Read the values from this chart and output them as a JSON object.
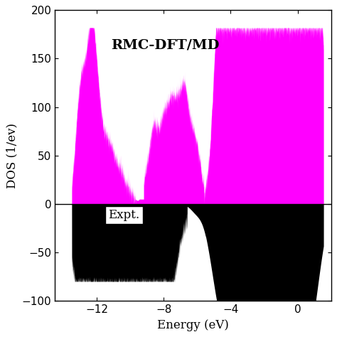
{
  "title": "RMC-DFT/MD",
  "xlabel": "Energy (eV)",
  "ylabel": "DOS (1/ev)",
  "xlim": [
    -14.5,
    2.0
  ],
  "ylim": [
    -100,
    200
  ],
  "yticks": [
    -100,
    -50,
    0,
    50,
    100,
    150,
    200
  ],
  "xticks": [
    -12,
    -8,
    -4,
    0
  ],
  "magenta_color": "#FF00FF",
  "black_color": "#000000",
  "expt_label": "Expt.",
  "rmc_label": "RMC-DFT/MD",
  "background_color": "#ffffff"
}
